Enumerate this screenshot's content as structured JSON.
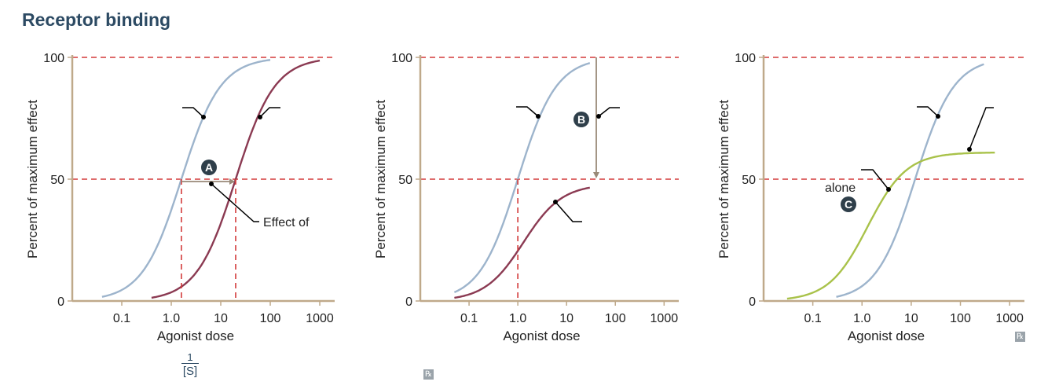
{
  "title": "Receptor binding",
  "footnote": {
    "numerator": "1",
    "denominator": "[S]"
  },
  "icons": [
    "rx-icon",
    "rx-icon"
  ],
  "colors": {
    "axis": "#bfa98a",
    "reference": "#d33a3a",
    "agonist": "#9db4cc",
    "shifted": "#8b3a52",
    "partial": "#a9c24a",
    "callout": "#000000",
    "marker": "#2f3f4a",
    "arrow": "#9a8a78"
  },
  "chart_data": [
    {
      "type": "line",
      "xlabel": "Agonist dose",
      "ylabel": "Percent of maximum effect",
      "x_scale": "log",
      "xlim": [
        0.01,
        2000
      ],
      "ylim": [
        0,
        100
      ],
      "xticks": [
        "0.1",
        "1.0",
        "10",
        "100",
        "1000"
      ],
      "yticks": [
        "0",
        "50",
        "100"
      ],
      "reference_lines_y": [
        50,
        100
      ],
      "series": [
        {
          "color_key": "agonist",
          "ec50": 1.6,
          "max": 100,
          "x": [
            0.04,
            0.1,
            0.3,
            1.0,
            1.6,
            3.0,
            10,
            30,
            100
          ],
          "y": [
            0,
            4,
            20,
            38,
            50,
            65,
            90,
            100,
            100
          ]
        },
        {
          "color_key": "shifted",
          "ec50": 20,
          "max": 100,
          "x": [
            0.4,
            1.0,
            3.0,
            10,
            20,
            50,
            100,
            300,
            1000
          ],
          "y": [
            0,
            4,
            18,
            38,
            50,
            70,
            85,
            98,
            100
          ]
        }
      ],
      "marker": "A",
      "annotations": [
        "Effect of"
      ]
    },
    {
      "type": "line",
      "xlabel": "Agonist dose",
      "ylabel": "Percent of maximum effect",
      "x_scale": "log",
      "xlim": [
        0.01,
        2000
      ],
      "ylim": [
        0,
        100
      ],
      "xticks": [
        "0.1",
        "1.0",
        "10",
        "100",
        "1000"
      ],
      "yticks": [
        "0",
        "50",
        "100"
      ],
      "reference_lines_y": [
        50,
        100
      ],
      "series": [
        {
          "color_key": "agonist",
          "ec50": 1.0,
          "max": 100,
          "x": [
            0.05,
            0.1,
            0.3,
            1.0,
            2.0,
            5.0,
            10,
            30
          ],
          "y": [
            0,
            4,
            20,
            50,
            75,
            90,
            97,
            100
          ]
        },
        {
          "color_key": "shifted",
          "ec50": 1.3,
          "max": 48,
          "x": [
            0.05,
            0.1,
            0.3,
            1.0,
            2.0,
            5.0,
            10,
            30
          ],
          "y": [
            0,
            2,
            8,
            22,
            32,
            40,
            45,
            48
          ]
        }
      ],
      "marker": "B",
      "annotations": []
    },
    {
      "type": "line",
      "xlabel": "Agonist dose",
      "ylabel": "Percent of maximum effect",
      "x_scale": "log",
      "xlim": [
        0.01,
        2000
      ],
      "ylim": [
        0,
        100
      ],
      "xticks": [
        "0.1",
        "1.0",
        "10",
        "100",
        "1000"
      ],
      "yticks": [
        "0",
        "50",
        "100"
      ],
      "reference_lines_y": [
        50,
        100
      ],
      "series": [
        {
          "color_key": "agonist",
          "ec50": 12,
          "max": 100,
          "x": [
            0.3,
            1.0,
            3.0,
            10,
            20,
            30,
            100,
            300
          ],
          "y": [
            0,
            6,
            22,
            48,
            65,
            75,
            96,
            100
          ]
        },
        {
          "color_key": "partial",
          "ec50": 1.3,
          "max": 61,
          "x": [
            0.03,
            0.1,
            0.3,
            1.0,
            3.0,
            10,
            100,
            500
          ],
          "y": [
            0,
            3,
            12,
            28,
            45,
            56,
            61,
            61
          ]
        }
      ],
      "marker": "C",
      "annotations": [
        "alone"
      ]
    }
  ]
}
